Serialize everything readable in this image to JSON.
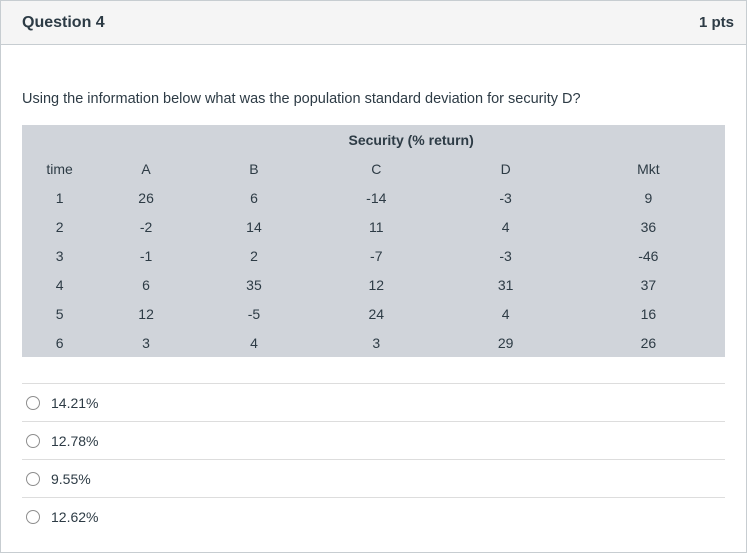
{
  "header": {
    "title": "Question 4",
    "points": "1 pts"
  },
  "question": {
    "text": "Using the information below what was the population standard deviation for security D?"
  },
  "table": {
    "title": "Security (% return)",
    "columns": [
      "time",
      "A",
      "B",
      "C",
      "D",
      "Mkt"
    ],
    "rows": [
      [
        "1",
        "26",
        "6",
        "-14",
        "-3",
        "9"
      ],
      [
        "2",
        "-2",
        "14",
        "11",
        "4",
        "36"
      ],
      [
        "3",
        "-1",
        "2",
        "-7",
        "-3",
        "-46"
      ],
      [
        "4",
        "6",
        "35",
        "12",
        "31",
        "37"
      ],
      [
        "5",
        "12",
        "-5",
        "24",
        "4",
        "16"
      ],
      [
        "6",
        "3",
        "4",
        "3",
        "29",
        "26"
      ]
    ]
  },
  "options": [
    {
      "label": "14.21%",
      "selected": false
    },
    {
      "label": "12.78%",
      "selected": false
    },
    {
      "label": "9.55%",
      "selected": false
    },
    {
      "label": "12.62%",
      "selected": false
    }
  ],
  "colors": {
    "header_bg": "#f5f5f5",
    "card_border": "#c7cdd1",
    "table_bg": "#d0d4da",
    "text": "#2d3b45",
    "divider": "#dddddd"
  }
}
